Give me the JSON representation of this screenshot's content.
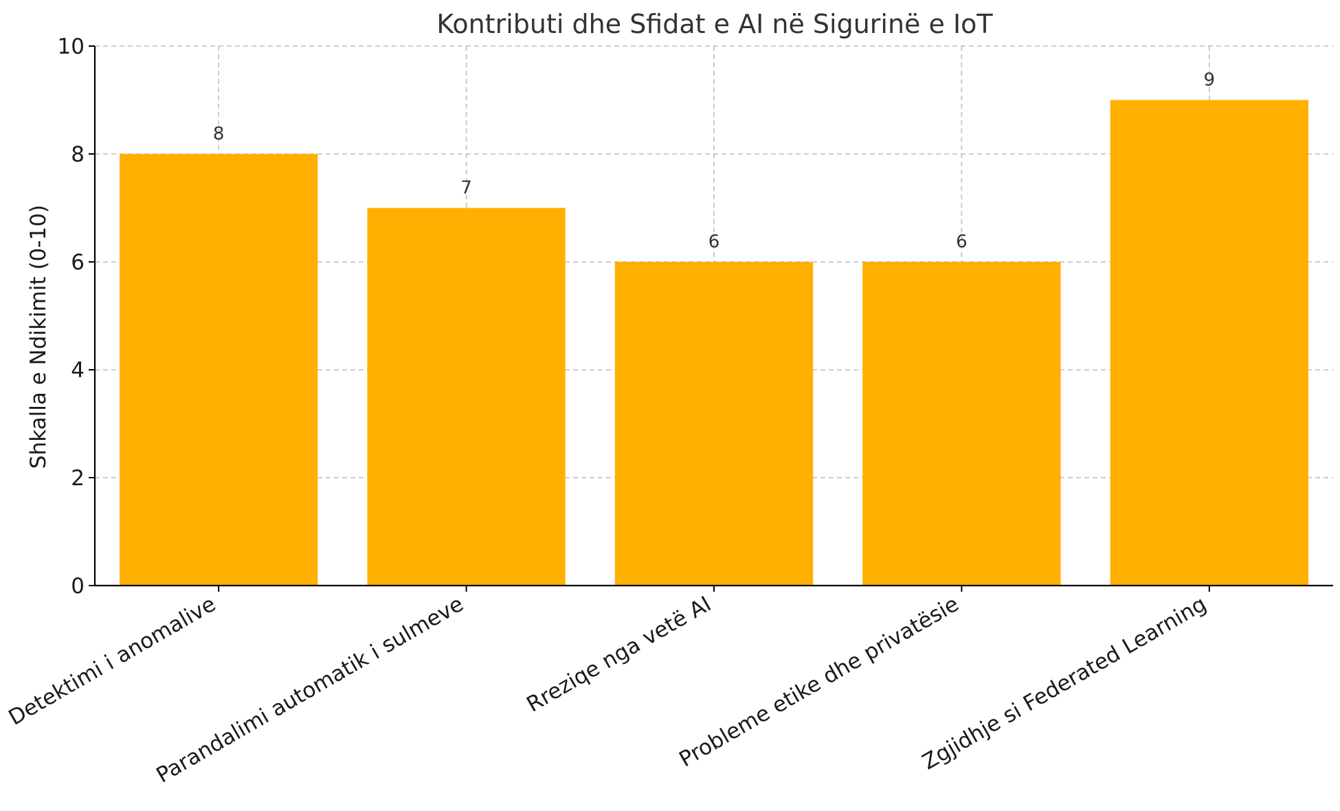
{
  "chart_data": {
    "type": "bar",
    "title": "Kontributi dhe Sfidat e AI në Sigurinë e IoT",
    "xlabel": "",
    "ylabel": "Shkalla e Ndikimit (0-10)",
    "categories": [
      "Detektimi i anomalive",
      "Parandalimi automatik i sulmeve",
      "Rreziqe nga vetë AI",
      "Probleme etike dhe privatësie",
      "Zgjidhje si Federated Learning"
    ],
    "values": [
      8,
      7,
      6,
      6,
      9
    ],
    "data_labels": [
      "8",
      "7",
      "6",
      "6",
      "9"
    ],
    "ylim": [
      0,
      10
    ],
    "yticks": [
      0,
      2,
      4,
      6,
      8,
      10
    ],
    "ytick_labels": [
      "0",
      "2",
      "4",
      "6",
      "8",
      "10"
    ],
    "bar_color": "#FFB000",
    "grid": true,
    "legend": "none"
  }
}
